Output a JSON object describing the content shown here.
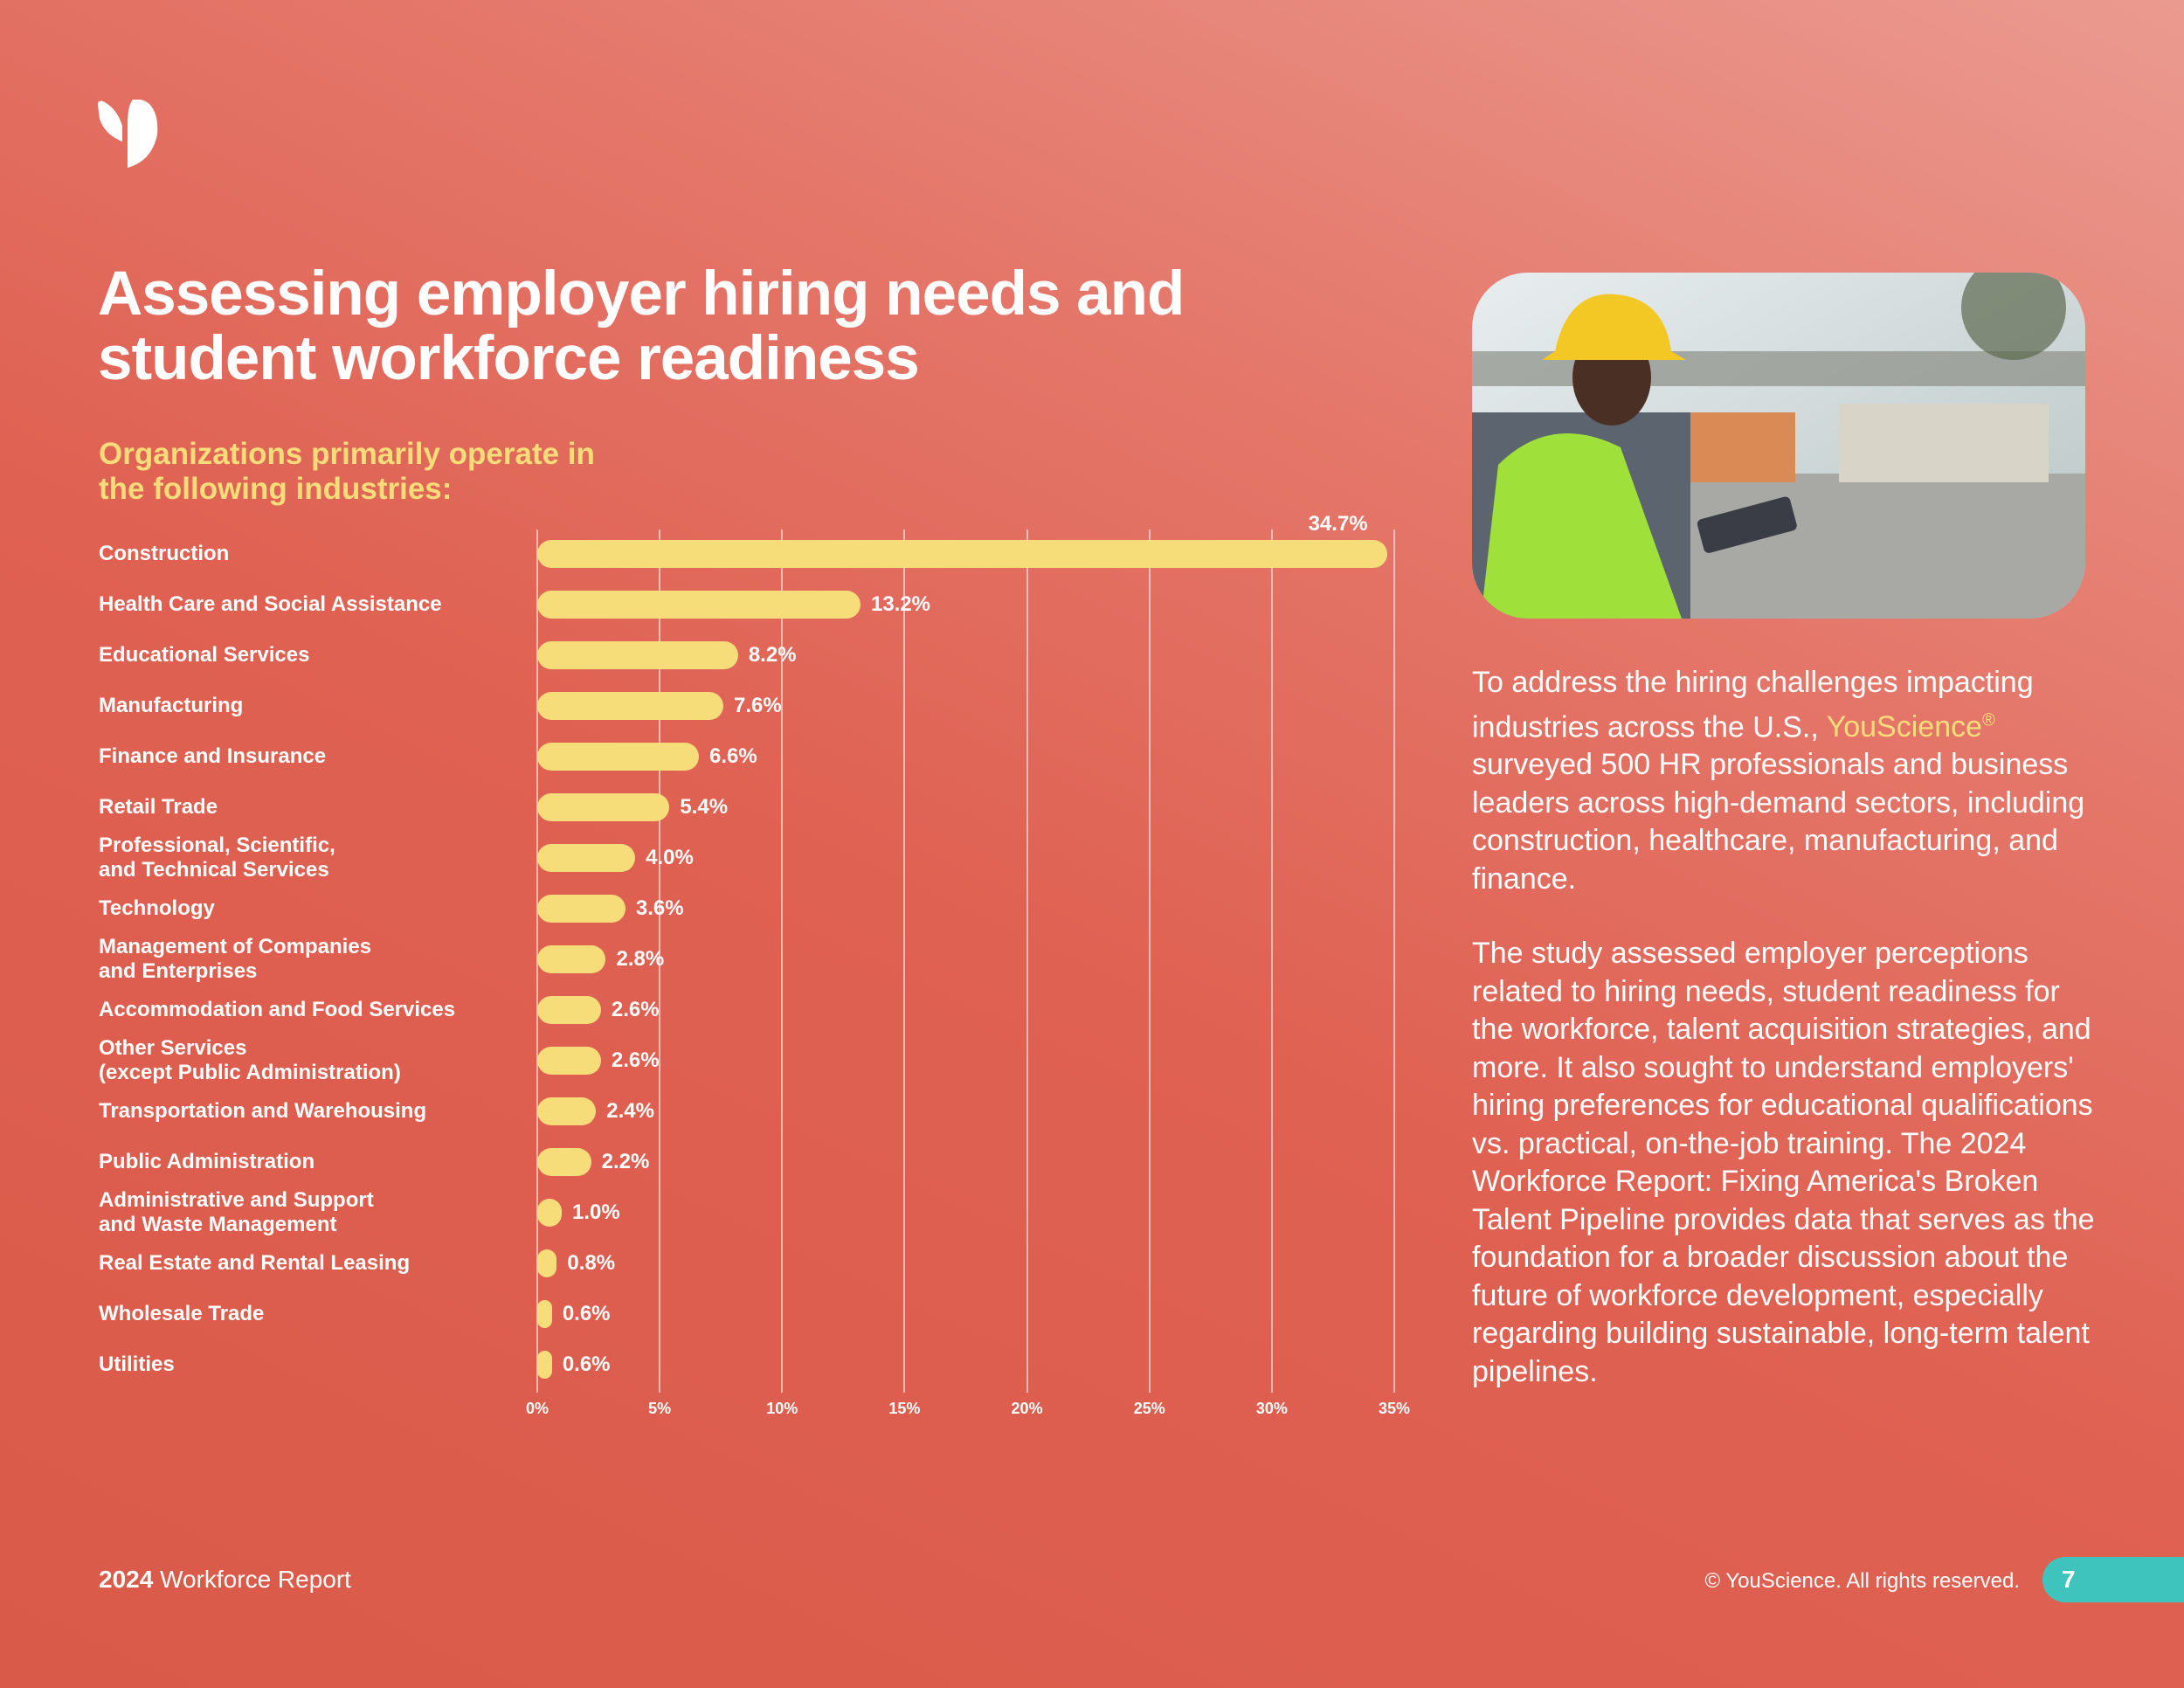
{
  "header": {
    "title": "Assessing employer hiring needs and student workforce readiness"
  },
  "chart_data": {
    "type": "bar",
    "orientation": "horizontal",
    "title": "Organizations primarily operate in the following industries:",
    "categories": [
      "Construction",
      "Health Care and Social Assistance",
      "Educational Services",
      "Manufacturing",
      "Finance and Insurance",
      "Retail Trade",
      "Professional, Scientific,\nand Technical Services",
      "Technology",
      "Management of Companies\nand Enterprises",
      "Accommodation and Food Services",
      "Other Services\n(except Public Administration)",
      "Transportation and Warehousing",
      "Public Administration",
      "Administrative and Support\nand Waste Management",
      "Real Estate and Rental Leasing",
      "Wholesale Trade",
      "Utilities"
    ],
    "values": [
      34.7,
      13.2,
      8.2,
      7.6,
      6.6,
      5.4,
      4.0,
      3.6,
      2.8,
      2.6,
      2.6,
      2.4,
      2.2,
      1.0,
      0.8,
      0.6,
      0.6
    ],
    "value_labels": [
      "34.7%",
      "13.2%",
      "8.2%",
      "7.6%",
      "6.6%",
      "5.4%",
      "4.0%",
      "3.6%",
      "2.8%",
      "2.6%",
      "2.6%",
      "2.4%",
      "2.2%",
      "1.0%",
      "0.8%",
      "0.6%",
      "0.6%"
    ],
    "color": "#f7dc7a",
    "xlim": [
      0,
      35
    ],
    "xticks": [
      {
        "value": 0,
        "label": "0%"
      },
      {
        "value": 5,
        "label": "5%"
      },
      {
        "value": 10,
        "label": "10%"
      },
      {
        "value": 15,
        "label": "15%"
      },
      {
        "value": 20,
        "label": "20%"
      },
      {
        "value": 25,
        "label": "25%"
      },
      {
        "value": 30,
        "label": "30%"
      },
      {
        "value": 35,
        "label": "35%"
      }
    ],
    "grid": true
  },
  "body": {
    "p1_before": "To address the hiring challenges impacting industries across the U.S., ",
    "brand": "YouScience",
    "brand_mark": "®",
    "p1_after": " surveyed 500 HR professionals and business leaders across high-demand sectors, including construction, healthcare, manufacturing, and finance.",
    "p2": "The study assessed employer perceptions related to hiring needs, student readiness for the workforce, talent acquisition strategies, and more. It also sought to understand employers' hiring preferences for educational qualifications vs. practical, on-the-job training. The 2024 Workforce Report: Fixing America's Broken Talent Pipeline provides data that serves as the foundation for a broader discussion about the future of workforce development, especially regarding building sustainable, long-term talent pipelines."
  },
  "footer": {
    "year": "2024",
    "report": "Workforce Report",
    "copyright": "© YouScience. All rights reserved.",
    "page": "7"
  }
}
